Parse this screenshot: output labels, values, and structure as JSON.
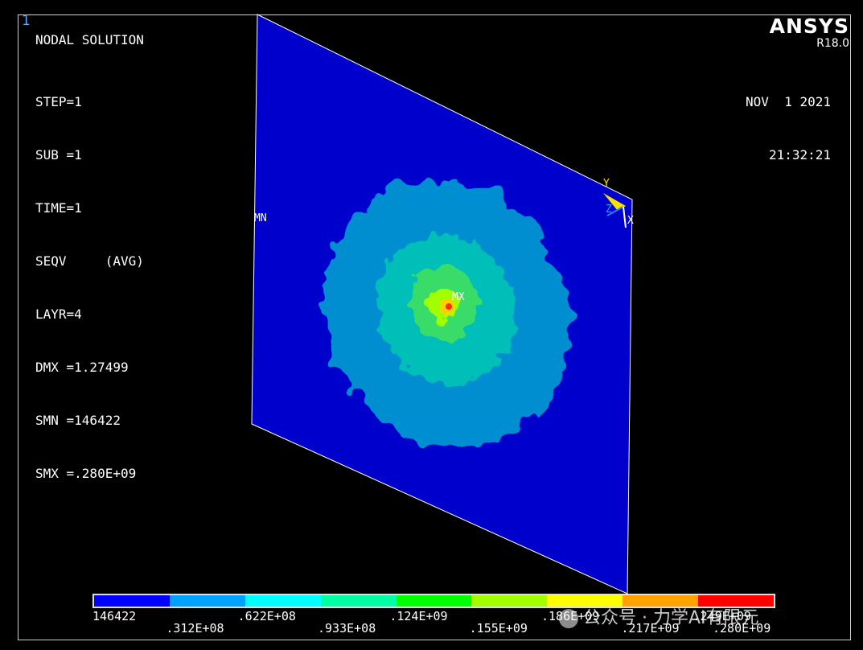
{
  "window_number": "1",
  "header": {
    "title": "NODAL SOLUTION",
    "logo": "ANSYS",
    "version": "R18.0"
  },
  "info": {
    "step": "STEP=1",
    "sub": "SUB =1",
    "time": "TIME=1",
    "seqv": "SEQV     (AVG)",
    "layr": "LAYR=4",
    "dmx": "DMX =1.27499",
    "smn": "SMN =146422",
    "smx": "SMX =.280E+09"
  },
  "datetime": {
    "date": "NOV  1 2021",
    "time": "21:32:21"
  },
  "markers": {
    "min": "MN",
    "max": "MX"
  },
  "triad": {
    "y": "Y",
    "z": "Z",
    "x": "X"
  },
  "legend": {
    "colors": [
      "#0000ff",
      "#00a2ff",
      "#00ffff",
      "#00ffa2",
      "#00ff00",
      "#a2ff00",
      "#ffff00",
      "#ffa200",
      "#ff0000"
    ],
    "labels_bottom_row": [
      "146422",
      ".622E+08",
      ".124E+09",
      ".186E+09",
      ".249E+09"
    ],
    "labels_top_row": [
      ".312E+08",
      ".933E+08",
      ".155E+09",
      ".217E+09",
      ".280E+09"
    ]
  },
  "watermark": "公众号 · 力学AI有限元",
  "palette": {
    "plate": "#0000cc",
    "contour_1": "#0096d2",
    "contour_2": "#00c8b4",
    "contour_3": "#40e060",
    "contour_4": "#a2ff00",
    "contour_5": "#ffd000",
    "hotspot": "#ff3000"
  }
}
